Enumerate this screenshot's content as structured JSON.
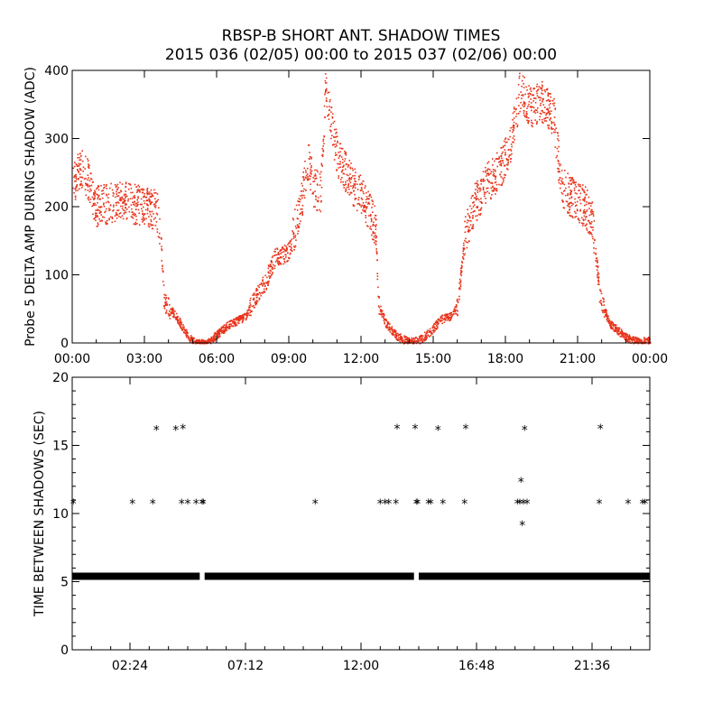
{
  "title": "RBSP-B SHORT ANT. SHADOW TIMES",
  "subtitle": "2015 036 (02/05) 00:00 to 2015 037 (02/06) 00:00",
  "colors": {
    "scatter": "#e8331a",
    "axes": "#000000",
    "marker": "#000000"
  },
  "chart_data": [
    {
      "type": "scatter",
      "ylabel": "Probe 5 DELTA AMP DURING SHADOW (ADC)",
      "ylim": [
        0,
        400
      ],
      "yticks": [
        "0",
        "100",
        "200",
        "300",
        "400"
      ],
      "xlim": [
        0,
        24
      ],
      "xticks": [
        "00:00",
        "03:00",
        "06:00",
        "09:00",
        "12:00",
        "15:00",
        "18:00",
        "21:00",
        "00:00"
      ],
      "xunit": "hours",
      "series": [
        {
          "color": "#e8331a",
          "envelope": [
            [
              0.0,
              230
            ],
            [
              0.3,
              260
            ],
            [
              0.6,
              245
            ],
            [
              0.9,
              200
            ],
            [
              1.4,
              205
            ],
            [
              2.0,
              210
            ],
            [
              2.6,
              205
            ],
            [
              3.0,
              200
            ],
            [
              3.5,
              195
            ],
            [
              3.65,
              160
            ],
            [
              3.8,
              60
            ],
            [
              4.3,
              40
            ],
            [
              4.8,
              10
            ],
            [
              5.1,
              0
            ],
            [
              5.6,
              0
            ],
            [
              5.9,
              10
            ],
            [
              6.4,
              25
            ],
            [
              7.2,
              40
            ],
            [
              7.6,
              70
            ],
            [
              8.0,
              90
            ],
            [
              8.4,
              125
            ],
            [
              9.0,
              135
            ],
            [
              9.5,
              210
            ],
            [
              9.8,
              270
            ],
            [
              10.0,
              230
            ],
            [
              10.3,
              220
            ],
            [
              10.5,
              370
            ],
            [
              10.7,
              330
            ],
            [
              11.0,
              275
            ],
            [
              11.5,
              240
            ],
            [
              12.0,
              215
            ],
            [
              12.6,
              170
            ],
            [
              12.7,
              60
            ],
            [
              13.0,
              30
            ],
            [
              13.5,
              10
            ],
            [
              14.0,
              2
            ],
            [
              14.4,
              5
            ],
            [
              14.8,
              15
            ],
            [
              15.3,
              35
            ],
            [
              15.7,
              40
            ],
            [
              16.0,
              55
            ],
            [
              16.3,
              160
            ],
            [
              16.7,
              205
            ],
            [
              17.2,
              235
            ],
            [
              17.8,
              260
            ],
            [
              18.2,
              290
            ],
            [
              18.6,
              375
            ],
            [
              19.0,
              345
            ],
            [
              19.5,
              355
            ],
            [
              20.0,
              330
            ],
            [
              20.3,
              230
            ],
            [
              20.7,
              215
            ],
            [
              21.3,
              200
            ],
            [
              21.6,
              180
            ],
            [
              21.9,
              70
            ],
            [
              22.3,
              30
            ],
            [
              22.8,
              15
            ],
            [
              23.2,
              5
            ],
            [
              23.6,
              2
            ],
            [
              24.0,
              5
            ]
          ]
        }
      ]
    },
    {
      "type": "scatter",
      "ylabel": "TIME BETWEEN SHADOWS (SEC)",
      "ylim": [
        0,
        20
      ],
      "yticks": [
        "0",
        "5",
        "10",
        "15",
        "20"
      ],
      "xlim": [
        0,
        24
      ],
      "xticks": [
        "02:24",
        "07:12",
        "12:00",
        "16:48",
        "21:36"
      ],
      "xunit": "hours",
      "baseline": {
        "value": 5.4,
        "from": 0.0,
        "to": 24.0,
        "gaps": [
          [
            5.3,
            5.5
          ],
          [
            14.2,
            14.4
          ]
        ]
      },
      "points": [
        [
          0.05,
          10.8
        ],
        [
          2.5,
          10.8
        ],
        [
          3.35,
          10.8
        ],
        [
          3.5,
          16.2
        ],
        [
          4.3,
          16.2
        ],
        [
          4.6,
          16.3
        ],
        [
          4.55,
          10.8
        ],
        [
          4.8,
          10.8
        ],
        [
          5.15,
          10.8
        ],
        [
          5.4,
          10.8
        ],
        [
          5.45,
          10.8
        ],
        [
          10.1,
          10.8
        ],
        [
          12.8,
          10.8
        ],
        [
          13.0,
          10.8
        ],
        [
          13.15,
          10.8
        ],
        [
          13.45,
          10.8
        ],
        [
          13.5,
          16.3
        ],
        [
          14.25,
          16.3
        ],
        [
          14.3,
          10.8
        ],
        [
          14.35,
          10.8
        ],
        [
          14.8,
          10.8
        ],
        [
          14.9,
          10.8
        ],
        [
          15.2,
          16.2
        ],
        [
          15.4,
          10.8
        ],
        [
          16.3,
          10.8
        ],
        [
          16.35,
          16.3
        ],
        [
          18.5,
          10.8
        ],
        [
          18.6,
          10.8
        ],
        [
          18.7,
          9.2
        ],
        [
          18.65,
          12.4
        ],
        [
          18.8,
          16.2
        ],
        [
          18.75,
          10.8
        ],
        [
          18.9,
          10.8
        ],
        [
          21.9,
          10.8
        ],
        [
          21.95,
          16.3
        ],
        [
          23.1,
          10.8
        ],
        [
          23.7,
          10.8
        ],
        [
          23.8,
          10.8
        ]
      ]
    }
  ]
}
